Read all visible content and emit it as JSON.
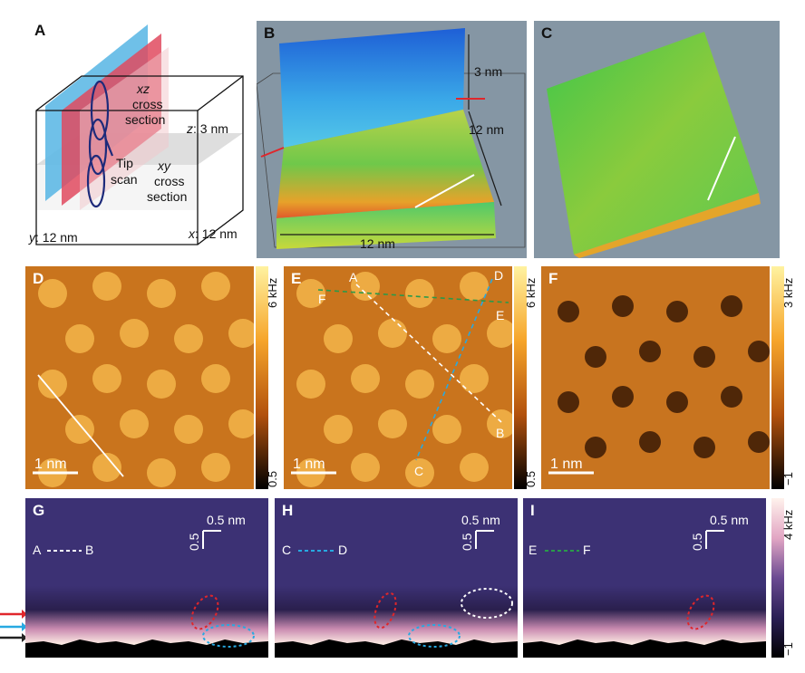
{
  "panelA": {
    "label": "A",
    "xz_title": "xz",
    "xz_line2": "cross",
    "xz_line3": "section",
    "z_label": "z",
    "z_value": ": 3 nm",
    "tip_line1": "Tip",
    "tip_line2": "scan",
    "xy_title": "xy",
    "xy_line2": "cross",
    "xy_line3": "section",
    "y_label": "y",
    "y_value": ": 12 nm",
    "x_label": "x",
    "x_value": ": 12 nm"
  },
  "panelB": {
    "label": "B",
    "dim_z": "3 nm",
    "dim_y": "12 nm",
    "dim_x": "12 nm"
  },
  "panelC": {
    "label": "C"
  },
  "panelD": {
    "label": "D",
    "scale": "1 nm",
    "cbar_max": "6 kHz",
    "cbar_min": "0.5"
  },
  "panelE": {
    "label": "E",
    "scale": "1 nm",
    "cbar_max": "6 kHz",
    "cbar_min": "0.5",
    "pt_A": "A",
    "pt_B": "B",
    "pt_C": "C",
    "pt_D": "D",
    "pt_E": "E",
    "pt_F": "F"
  },
  "panelF": {
    "label": "F",
    "scale": "1 nm",
    "cbar_max": "3 kHz",
    "cbar_min": "−1"
  },
  "panelG": {
    "label": "G",
    "scale_h": "0.5 nm",
    "scale_v": "0.5",
    "line_start": "A",
    "line_end": "B"
  },
  "panelH": {
    "label": "H",
    "scale_h": "0.5 nm",
    "scale_v": "0.5",
    "line_start": "C",
    "line_end": "D"
  },
  "panelI": {
    "label": "I",
    "scale_h": "0.5 nm",
    "scale_v": "0.5",
    "line_start": "E",
    "line_end": "F"
  },
  "bottom_cbar": {
    "max": "4 kHz",
    "min": "−1"
  },
  "colors": {
    "orange_dark": "#4a1c00",
    "orange_mid": "#d9791a",
    "orange_light": "#f6b045",
    "purple_bg": "#3b3073",
    "red_marker": "#e0262b",
    "cyan_marker": "#27a9e1",
    "green_marker": "#2a9a4a"
  }
}
